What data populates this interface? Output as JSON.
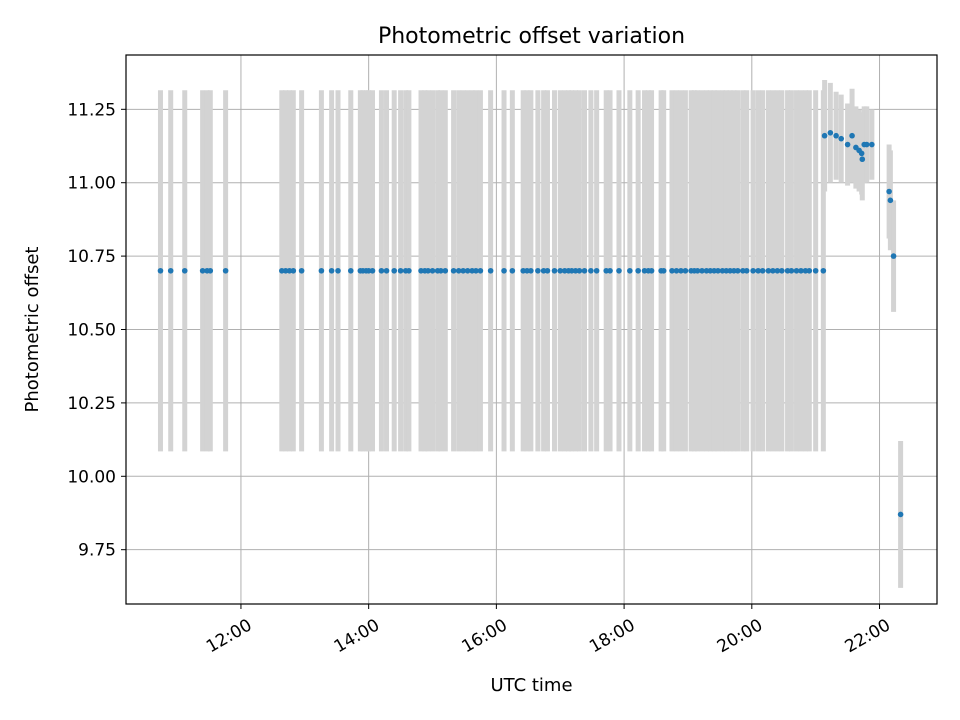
{
  "chart_data": {
    "type": "scatter",
    "title": "Photometric offset variation",
    "xlabel": "UTC time",
    "ylabel": "Photometric offset",
    "x_unit": "hours UTC",
    "xlim": [
      10.2,
      22.9
    ],
    "ylim": [
      9.565,
      11.435
    ],
    "x_ticks": [
      {
        "value": 12,
        "label": "12:00"
      },
      {
        "value": 14,
        "label": "14:00"
      },
      {
        "value": 16,
        "label": "16:00"
      },
      {
        "value": 18,
        "label": "18:00"
      },
      {
        "value": 20,
        "label": "20:00"
      },
      {
        "value": 22,
        "label": "22:00"
      }
    ],
    "y_ticks": [
      {
        "value": 9.75,
        "label": "9.75"
      },
      {
        "value": 10.0,
        "label": "10.00"
      },
      {
        "value": 10.25,
        "label": "10.25"
      },
      {
        "value": 10.5,
        "label": "10.50"
      },
      {
        "value": 10.75,
        "label": "10.75"
      },
      {
        "value": 11.0,
        "label": "11.00"
      },
      {
        "value": 11.25,
        "label": "11.25"
      }
    ],
    "grid": true,
    "colors": {
      "marker": "#1f77b4",
      "errorbar": "#d3d3d3",
      "grid": "#b0b0b0"
    },
    "series": [
      {
        "x": [
          10.74,
          10.9,
          11.12,
          11.4,
          11.47,
          11.52,
          11.76,
          12.64,
          12.7,
          12.76,
          12.82,
          12.95,
          13.26,
          13.42,
          13.52,
          13.72,
          13.87,
          13.91,
          13.96,
          14.0,
          14.06,
          14.2,
          14.28,
          14.4,
          14.5,
          14.58,
          14.63,
          14.82,
          14.88,
          14.93,
          15.0,
          15.08,
          15.13,
          15.2,
          15.33,
          15.41,
          15.48,
          15.55,
          15.62,
          15.68,
          15.75,
          15.91,
          16.12,
          16.25,
          16.42,
          16.48,
          16.54,
          16.65,
          16.74,
          16.8,
          16.91,
          17.0,
          17.07,
          17.13,
          17.18,
          17.24,
          17.3,
          17.38,
          17.48,
          17.57,
          17.72,
          17.78,
          17.92,
          18.09,
          18.22,
          18.32,
          18.38,
          18.43,
          18.58,
          18.62,
          18.75,
          18.82,
          18.89,
          18.96,
          19.05,
          19.1,
          19.15,
          19.22,
          19.29,
          19.35,
          19.41,
          19.47,
          19.54,
          19.6,
          19.66,
          19.72,
          19.78,
          19.86,
          19.92,
          20.02,
          20.1,
          20.17,
          20.26,
          20.33,
          20.4,
          20.47,
          20.56,
          20.62,
          20.7,
          20.77,
          20.84,
          20.9,
          21.0,
          21.12,
          21.14,
          21.23,
          21.32,
          21.4,
          21.5,
          21.57,
          21.63,
          21.68,
          21.72,
          21.73,
          21.76,
          21.8,
          21.88,
          22.15,
          22.17,
          22.22,
          22.33
        ],
        "y": [
          10.7,
          10.7,
          10.7,
          10.7,
          10.7,
          10.7,
          10.7,
          10.7,
          10.7,
          10.7,
          10.7,
          10.7,
          10.7,
          10.7,
          10.7,
          10.7,
          10.7,
          10.7,
          10.7,
          10.7,
          10.7,
          10.7,
          10.7,
          10.7,
          10.7,
          10.7,
          10.7,
          10.7,
          10.7,
          10.7,
          10.7,
          10.7,
          10.7,
          10.7,
          10.7,
          10.7,
          10.7,
          10.7,
          10.7,
          10.7,
          10.7,
          10.7,
          10.7,
          10.7,
          10.7,
          10.7,
          10.7,
          10.7,
          10.7,
          10.7,
          10.7,
          10.7,
          10.7,
          10.7,
          10.7,
          10.7,
          10.7,
          10.7,
          10.7,
          10.7,
          10.7,
          10.7,
          10.7,
          10.7,
          10.7,
          10.7,
          10.7,
          10.7,
          10.7,
          10.7,
          10.7,
          10.7,
          10.7,
          10.7,
          10.7,
          10.7,
          10.7,
          10.7,
          10.7,
          10.7,
          10.7,
          10.7,
          10.7,
          10.7,
          10.7,
          10.7,
          10.7,
          10.7,
          10.7,
          10.7,
          10.7,
          10.7,
          10.7,
          10.7,
          10.7,
          10.7,
          10.7,
          10.7,
          10.7,
          10.7,
          10.7,
          10.7,
          10.7,
          10.7,
          11.16,
          11.17,
          11.16,
          11.15,
          11.13,
          11.16,
          11.12,
          11.11,
          11.1,
          11.08,
          11.13,
          11.13,
          11.13,
          10.97,
          10.94,
          10.75,
          9.87
        ],
        "yerr": [
          0.615,
          0.615,
          0.615,
          0.615,
          0.615,
          0.615,
          0.615,
          0.615,
          0.615,
          0.615,
          0.615,
          0.615,
          0.615,
          0.615,
          0.615,
          0.615,
          0.615,
          0.615,
          0.615,
          0.615,
          0.615,
          0.615,
          0.615,
          0.615,
          0.615,
          0.615,
          0.615,
          0.615,
          0.615,
          0.615,
          0.615,
          0.615,
          0.615,
          0.615,
          0.615,
          0.615,
          0.615,
          0.615,
          0.615,
          0.615,
          0.615,
          0.615,
          0.615,
          0.615,
          0.615,
          0.615,
          0.615,
          0.615,
          0.615,
          0.615,
          0.615,
          0.615,
          0.615,
          0.615,
          0.615,
          0.615,
          0.615,
          0.615,
          0.615,
          0.615,
          0.615,
          0.615,
          0.615,
          0.615,
          0.615,
          0.615,
          0.615,
          0.615,
          0.615,
          0.615,
          0.615,
          0.615,
          0.615,
          0.615,
          0.615,
          0.615,
          0.615,
          0.615,
          0.615,
          0.615,
          0.615,
          0.615,
          0.615,
          0.615,
          0.615,
          0.615,
          0.615,
          0.615,
          0.615,
          0.615,
          0.615,
          0.615,
          0.615,
          0.615,
          0.615,
          0.615,
          0.615,
          0.615,
          0.615,
          0.615,
          0.615,
          0.615,
          0.615,
          0.615,
          0.19,
          0.17,
          0.15,
          0.15,
          0.14,
          0.16,
          0.14,
          0.14,
          0.14,
          0.14,
          0.13,
          0.13,
          0.12,
          0.16,
          0.17,
          0.19,
          0.25
        ]
      }
    ]
  }
}
